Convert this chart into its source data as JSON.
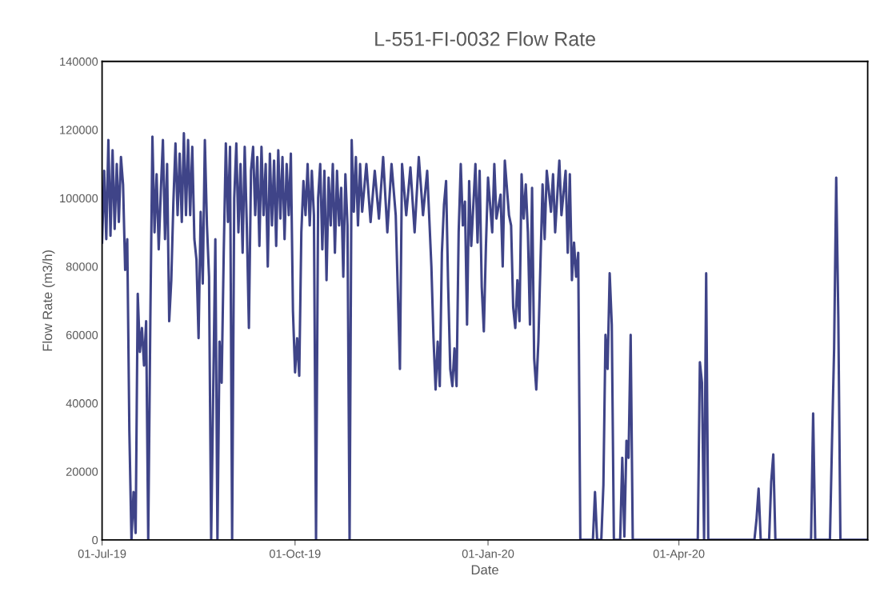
{
  "chart_data": {
    "type": "line",
    "title": "L-551-FI-0032 Flow Rate",
    "xlabel": "Date",
    "ylabel": "Flow Rate (m3/h)",
    "x": [
      "2019-07-01",
      "2019-07-02",
      "2019-07-03",
      "2019-07-04",
      "2019-07-05",
      "2019-07-06",
      "2019-07-07",
      "2019-07-08",
      "2019-07-09",
      "2019-07-10",
      "2019-07-11",
      "2019-07-12",
      "2019-07-13",
      "2019-07-14",
      "2019-07-15",
      "2019-07-16",
      "2019-07-17",
      "2019-07-18",
      "2019-07-19",
      "2019-07-20",
      "2019-07-21",
      "2019-07-22",
      "2019-07-23",
      "2019-07-24",
      "2019-07-25",
      "2019-07-26",
      "2019-07-27",
      "2019-07-28",
      "2019-07-29",
      "2019-07-30",
      "2019-07-31",
      "2019-08-01",
      "2019-08-02",
      "2019-08-03",
      "2019-08-04",
      "2019-08-05",
      "2019-08-06",
      "2019-08-07",
      "2019-08-08",
      "2019-08-09",
      "2019-08-10",
      "2019-08-11",
      "2019-08-12",
      "2019-08-13",
      "2019-08-14",
      "2019-08-15",
      "2019-08-16",
      "2019-08-17",
      "2019-08-18",
      "2019-08-19",
      "2019-08-20",
      "2019-08-21",
      "2019-08-22",
      "2019-08-24",
      "2019-08-25",
      "2019-08-26",
      "2019-08-27",
      "2019-08-28",
      "2019-08-29",
      "2019-08-30",
      "2019-08-31",
      "2019-09-01",
      "2019-09-02",
      "2019-09-03",
      "2019-09-04",
      "2019-09-05",
      "2019-09-06",
      "2019-09-07",
      "2019-09-08",
      "2019-09-09",
      "2019-09-10",
      "2019-09-11",
      "2019-09-12",
      "2019-09-13",
      "2019-09-14",
      "2019-09-15",
      "2019-09-16",
      "2019-09-17",
      "2019-09-18",
      "2019-09-19",
      "2019-09-20",
      "2019-09-21",
      "2019-09-22",
      "2019-09-23",
      "2019-09-24",
      "2019-09-25",
      "2019-09-26",
      "2019-09-27",
      "2019-09-28",
      "2019-09-29",
      "2019-09-30",
      "2019-10-01",
      "2019-10-02",
      "2019-10-03",
      "2019-10-04",
      "2019-10-05",
      "2019-10-06",
      "2019-10-07",
      "2019-10-08",
      "2019-10-09",
      "2019-10-10",
      "2019-10-11",
      "2019-10-12",
      "2019-10-13",
      "2019-10-14",
      "2019-10-15",
      "2019-10-16",
      "2019-10-17",
      "2019-10-18",
      "2019-10-19",
      "2019-10-20",
      "2019-10-21",
      "2019-10-22",
      "2019-10-23",
      "2019-10-24",
      "2019-10-25",
      "2019-10-26",
      "2019-10-27",
      "2019-10-28",
      "2019-10-29",
      "2019-10-30",
      "2019-10-31",
      "2019-11-01",
      "2019-11-02",
      "2019-11-04",
      "2019-11-06",
      "2019-11-08",
      "2019-11-10",
      "2019-11-12",
      "2019-11-14",
      "2019-11-16",
      "2019-11-18",
      "2019-11-20",
      "2019-11-21",
      "2019-11-23",
      "2019-11-25",
      "2019-11-27",
      "2019-11-29",
      "2019-12-01",
      "2019-12-03",
      "2019-12-05",
      "2019-12-06",
      "2019-12-07",
      "2019-12-08",
      "2019-12-09",
      "2019-12-10",
      "2019-12-11",
      "2019-12-12",
      "2019-12-13",
      "2019-12-14",
      "2019-12-15",
      "2019-12-16",
      "2019-12-17",
      "2019-12-18",
      "2019-12-19",
      "2019-12-20",
      "2019-12-21",
      "2019-12-22",
      "2019-12-23",
      "2019-12-24",
      "2019-12-25",
      "2019-12-26",
      "2019-12-27",
      "2019-12-28",
      "2019-12-29",
      "2019-12-30",
      "2019-12-31",
      "2020-01-01",
      "2020-01-03",
      "2020-01-04",
      "2020-01-05",
      "2020-01-07",
      "2020-01-08",
      "2020-01-09",
      "2020-01-11",
      "2020-01-12",
      "2020-01-13",
      "2020-01-14",
      "2020-01-15",
      "2020-01-16",
      "2020-01-17",
      "2020-01-18",
      "2020-01-19",
      "2020-01-20",
      "2020-01-21",
      "2020-01-22",
      "2020-01-23",
      "2020-01-24",
      "2020-01-25",
      "2020-01-26",
      "2020-01-27",
      "2020-01-28",
      "2020-01-29",
      "2020-01-31",
      "2020-02-01",
      "2020-02-02",
      "2020-02-04",
      "2020-02-05",
      "2020-02-07",
      "2020-02-08",
      "2020-02-09",
      "2020-02-10",
      "2020-02-11",
      "2020-02-12",
      "2020-02-13",
      "2020-02-14",
      "2020-02-15",
      "2020-02-20",
      "2020-02-21",
      "2020-02-22",
      "2020-02-24",
      "2020-02-25",
      "2020-02-26",
      "2020-02-27",
      "2020-02-28",
      "2020-02-29",
      "2020-03-01",
      "2020-03-04",
      "2020-03-05",
      "2020-03-06",
      "2020-03-07",
      "2020-03-08",
      "2020-03-09",
      "2020-03-10",
      "2020-04-10",
      "2020-04-11",
      "2020-04-12",
      "2020-04-13",
      "2020-04-14",
      "2020-04-15",
      "2020-05-07",
      "2020-05-08",
      "2020-05-09",
      "2020-05-10",
      "2020-05-14",
      "2020-05-15",
      "2020-05-16",
      "2020-05-17",
      "2020-06-03",
      "2020-06-04",
      "2020-06-05",
      "2020-06-12",
      "2020-06-13",
      "2020-06-14",
      "2020-06-15",
      "2020-06-16",
      "2020-06-17",
      "2020-06-30"
    ],
    "series": [
      {
        "color": "#3f4488",
        "values": [
          87000,
          108000,
          88000,
          117000,
          89000,
          114000,
          91000,
          110000,
          93000,
          112000,
          104000,
          79000,
          88000,
          32000,
          0,
          14000,
          2000,
          72000,
          55000,
          62000,
          51000,
          64000,
          0,
          64000,
          118000,
          90000,
          107000,
          85000,
          102000,
          117000,
          88000,
          110000,
          64000,
          76000,
          99000,
          116000,
          95000,
          113000,
          93000,
          119000,
          95000,
          117000,
          95000,
          115000,
          88000,
          82000,
          59000,
          96000,
          75000,
          117000,
          92000,
          77000,
          0,
          88000,
          0,
          58000,
          46000,
          84000,
          116000,
          93000,
          115000,
          0,
          100000,
          116000,
          90000,
          110000,
          84000,
          115000,
          92000,
          62000,
          108000,
          115000,
          95000,
          112000,
          86000,
          115000,
          95000,
          110000,
          80000,
          113000,
          92000,
          111000,
          86000,
          114000,
          94000,
          112000,
          88000,
          110000,
          95000,
          113000,
          67000,
          49000,
          59000,
          48000,
          90000,
          105000,
          95000,
          110000,
          92000,
          108000,
          95000,
          0,
          100000,
          110000,
          85000,
          108000,
          76000,
          106000,
          92000,
          110000,
          84000,
          108000,
          92000,
          103000,
          77000,
          107000,
          92000,
          0,
          117000,
          96000,
          112000,
          92000,
          110000,
          96000,
          110000,
          93000,
          108000,
          94000,
          112000,
          90000,
          110000,
          95000,
          50000,
          110000,
          95000,
          109000,
          90000,
          112000,
          95000,
          108000,
          80000,
          59000,
          44000,
          58000,
          45000,
          84000,
          98000,
          105000,
          74000,
          50000,
          45000,
          56000,
          45000,
          90000,
          110000,
          92000,
          99000,
          63000,
          105000,
          86000,
          98000,
          110000,
          87000,
          108000,
          74000,
          61000,
          86000,
          106000,
          90000,
          110000,
          94000,
          101000,
          80000,
          111000,
          95000,
          92000,
          68000,
          62000,
          76000,
          64000,
          107000,
          94000,
          104000,
          90000,
          63000,
          103000,
          53000,
          44000,
          58000,
          81000,
          104000,
          88000,
          108000,
          96000,
          107000,
          90000,
          111000,
          95000,
          108000,
          84000,
          107000,
          76000,
          87000,
          77000,
          84000,
          0,
          0,
          0,
          14000,
          0,
          0,
          16000,
          60000,
          50000,
          78000,
          63000,
          0,
          0,
          24000,
          1000,
          29000,
          24000,
          60000,
          0,
          0,
          52000,
          46000,
          0,
          78000,
          0,
          0,
          6000,
          15000,
          0,
          0,
          17000,
          25000,
          0,
          0,
          37000,
          0,
          0,
          29000,
          56000,
          106000,
          65000,
          0,
          0
        ]
      }
    ],
    "xlim": [
      "2019-07-01",
      "2020-06-30"
    ],
    "xticks": [
      {
        "value": "2019-07-01",
        "label": "01-Jul-19"
      },
      {
        "value": "2019-10-01",
        "label": "01-Oct-19"
      },
      {
        "value": "2020-01-01",
        "label": "01-Jan-20"
      },
      {
        "value": "2020-04-01",
        "label": "01-Apr-20"
      }
    ],
    "ylim": [
      0,
      140000
    ],
    "yticks": [
      0,
      20000,
      40000,
      60000,
      80000,
      100000,
      120000,
      140000
    ],
    "grid": false,
    "marker": "none",
    "line_style": "solid"
  }
}
